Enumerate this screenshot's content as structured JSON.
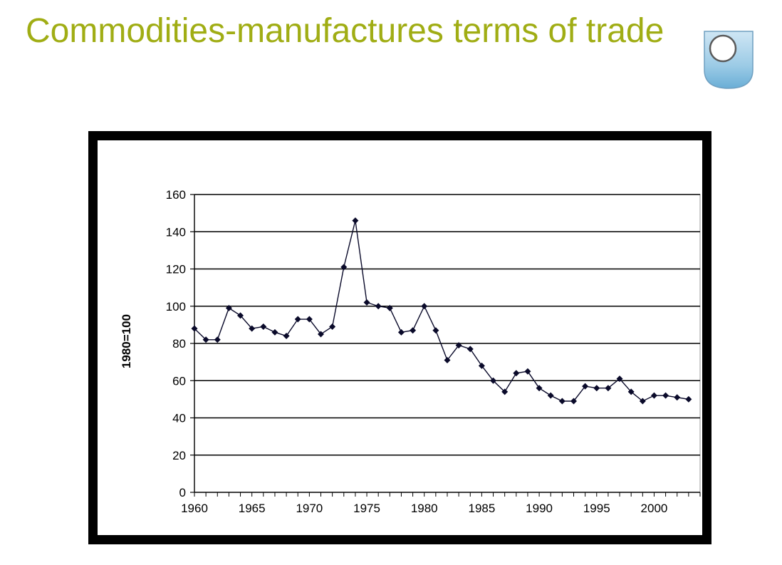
{
  "slide": {
    "title": "Commodities-manufactures terms of trade"
  },
  "logo": {
    "icon": "open-university-shield-logo"
  },
  "colors": {
    "title": "#a0ad14",
    "frame": "#000000",
    "series": "#0a0a2a"
  },
  "chart_data": {
    "type": "line",
    "title": "",
    "xlabel": "",
    "ylabel": "1980=100",
    "xlim": [
      1960,
      2004
    ],
    "ylim": [
      0,
      160
    ],
    "yticks": [
      0,
      20,
      40,
      60,
      80,
      100,
      120,
      140,
      160
    ],
    "xtick_labels": [
      "1960",
      "1965",
      "1970",
      "1975",
      "1980",
      "1985",
      "1990",
      "1995",
      "2000"
    ],
    "grid": "horizontal",
    "legend": "none",
    "series": [
      {
        "marker": "diamond",
        "x": [
          1960,
          1961,
          1962,
          1963,
          1964,
          1965,
          1966,
          1967,
          1968,
          1969,
          1970,
          1971,
          1972,
          1973,
          1974,
          1975,
          1976,
          1977,
          1978,
          1979,
          1980,
          1981,
          1982,
          1983,
          1984,
          1985,
          1986,
          1987,
          1988,
          1989,
          1990,
          1991,
          1992,
          1993,
          1994,
          1995,
          1996,
          1997,
          1998,
          1999,
          2000,
          2001,
          2002,
          2003
        ],
        "values": [
          88,
          82,
          82,
          99,
          95,
          88,
          89,
          86,
          84,
          93,
          93,
          85,
          89,
          121,
          146,
          102,
          100,
          99,
          86,
          87,
          100,
          87,
          71,
          79,
          77,
          68,
          60,
          54,
          64,
          65,
          56,
          52,
          49,
          49,
          57,
          56,
          56,
          61,
          54,
          49,
          52,
          52,
          51,
          50
        ]
      }
    ]
  }
}
